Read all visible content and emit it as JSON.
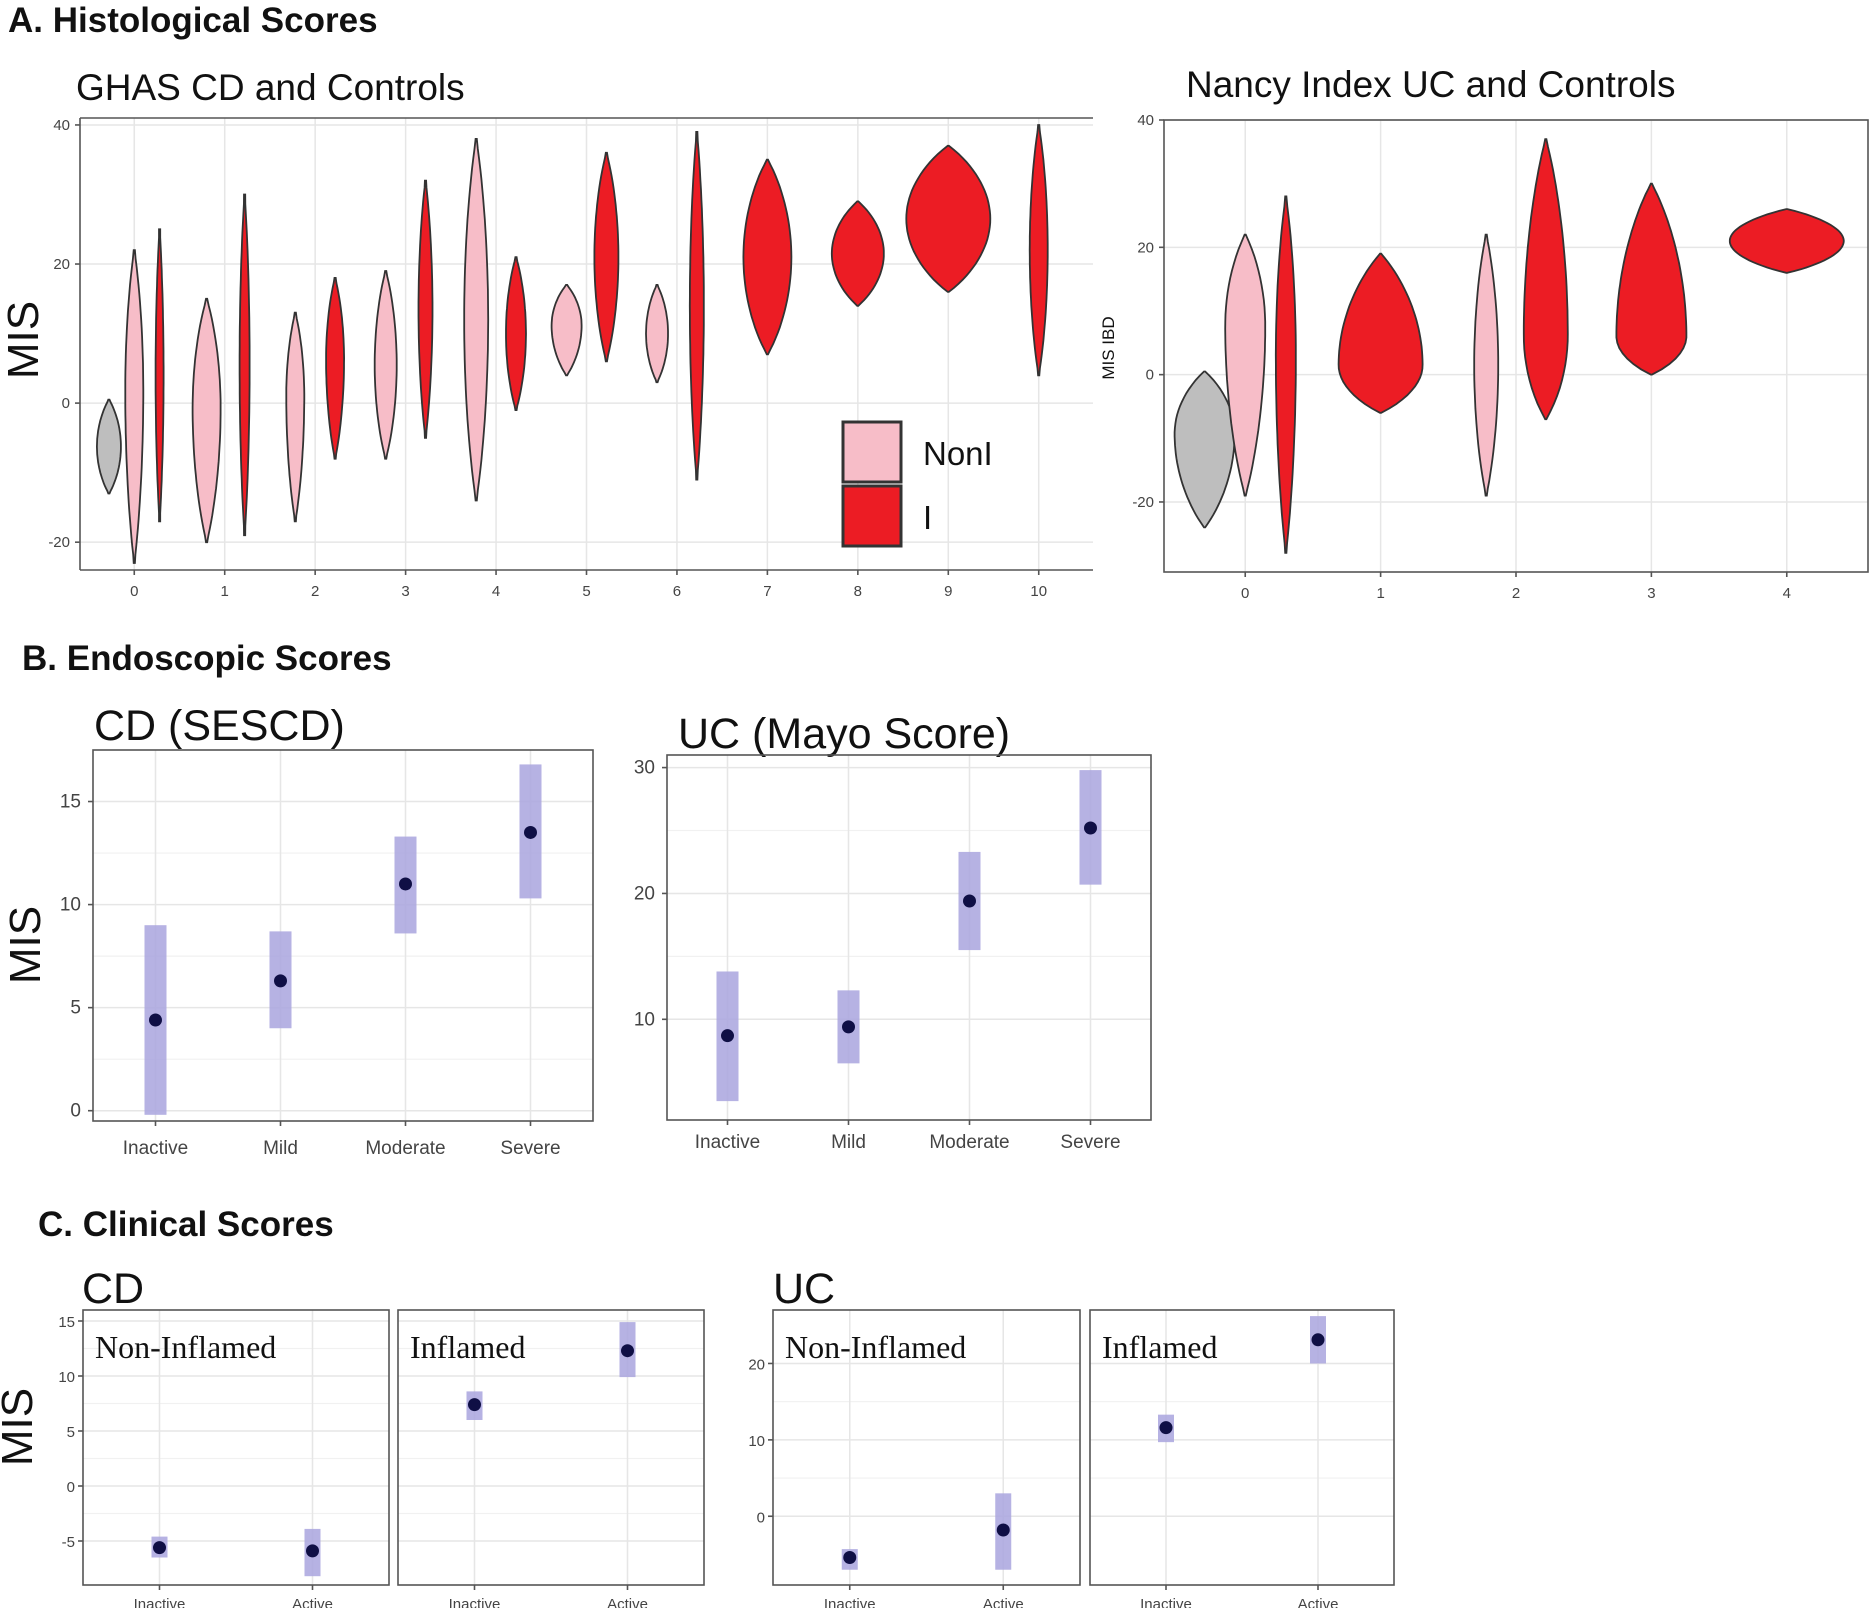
{
  "colors": {
    "control": "#bebebe",
    "noninflamed": "#f7bdc8",
    "inflamed": "#ec1c24",
    "dot": "#0f0f45",
    "band": "#a9a4de",
    "outline": "#333333"
  },
  "sections": {
    "a": "A. Histological Scores",
    "b": "B. Endoscopic Scores",
    "c": "C. Clinical Scores"
  },
  "chart_data": [
    {
      "id": "ghas",
      "type": "violin",
      "title": "GHAS CD and Controls",
      "ylabel": "MIS",
      "ylim": [
        -24,
        41
      ],
      "yticks": [
        -20,
        0,
        20,
        40
      ],
      "ytick_labels": [
        "-20",
        "0",
        "20",
        "40"
      ],
      "categories": [
        "0",
        "1",
        "2",
        "3",
        "4",
        "5",
        "6",
        "7",
        "8",
        "9",
        "10"
      ],
      "legend": {
        "position": "bottom-right",
        "items": [
          {
            "label": "NonI",
            "group": "noninflamed"
          },
          {
            "label": "I",
            "group": "inflamed"
          }
        ]
      },
      "violins": [
        {
          "category": "0",
          "group": "control",
          "offset": -0.28,
          "ymin": -13,
          "ymax": 0.5,
          "maxw": 12,
          "wide_at": 0.5
        },
        {
          "category": "0",
          "group": "noninflamed",
          "offset": 0,
          "ymin": -23,
          "ymax": 22,
          "maxw": 9,
          "wide_at": 0.55
        },
        {
          "category": "0",
          "group": "inflamed",
          "offset": 0.28,
          "ymin": -17,
          "ymax": 25,
          "maxw": 4,
          "wide_at": 0.5
        },
        {
          "category": "1",
          "group": "noninflamed",
          "offset": -0.2,
          "ymin": -20,
          "ymax": 15,
          "maxw": 14,
          "wide_at": 0.55
        },
        {
          "category": "1",
          "group": "inflamed",
          "offset": 0.22,
          "ymin": -19,
          "ymax": 30,
          "maxw": 5,
          "wide_at": 0.5
        },
        {
          "category": "2",
          "group": "noninflamed",
          "offset": -0.22,
          "ymin": -17,
          "ymax": 13,
          "maxw": 9,
          "wide_at": 0.6
        },
        {
          "category": "2",
          "group": "inflamed",
          "offset": 0.22,
          "ymin": -8,
          "ymax": 18,
          "maxw": 9,
          "wide_at": 0.55
        },
        {
          "category": "3",
          "group": "noninflamed",
          "offset": -0.22,
          "ymin": -8,
          "ymax": 19,
          "maxw": 11,
          "wide_at": 0.5
        },
        {
          "category": "3",
          "group": "inflamed",
          "offset": 0.22,
          "ymin": -5,
          "ymax": 32,
          "maxw": 7,
          "wide_at": 0.5
        },
        {
          "category": "4",
          "group": "noninflamed",
          "offset": -0.22,
          "ymin": -14,
          "ymax": 38,
          "maxw": 12,
          "wide_at": 0.5
        },
        {
          "category": "4",
          "group": "inflamed",
          "offset": 0.22,
          "ymin": -1,
          "ymax": 21,
          "maxw": 10,
          "wide_at": 0.5
        },
        {
          "category": "5",
          "group": "noninflamed",
          "offset": -0.22,
          "ymin": 4,
          "ymax": 17,
          "maxw": 15,
          "wide_at": 0.55
        },
        {
          "category": "5",
          "group": "inflamed",
          "offset": 0.22,
          "ymin": 6,
          "ymax": 36,
          "maxw": 12,
          "wide_at": 0.5
        },
        {
          "category": "6",
          "group": "noninflamed",
          "offset": -0.22,
          "ymin": 3,
          "ymax": 17,
          "maxw": 11,
          "wide_at": 0.5
        },
        {
          "category": "6",
          "group": "inflamed",
          "offset": 0.22,
          "ymin": -11,
          "ymax": 39,
          "maxw": 7,
          "wide_at": 0.5
        },
        {
          "category": "7",
          "group": "inflamed",
          "offset": 0,
          "ymin": 7,
          "ymax": 35,
          "maxw": 24,
          "wide_at": 0.5
        },
        {
          "category": "8",
          "group": "inflamed",
          "offset": 0,
          "ymin": 14,
          "ymax": 29,
          "maxw": 26,
          "wide_at": 0.5
        },
        {
          "category": "9",
          "group": "inflamed",
          "offset": 0,
          "ymin": 16,
          "ymax": 37,
          "maxw": 42,
          "wide_at": 0.5
        },
        {
          "category": "10",
          "group": "inflamed",
          "offset": 0,
          "ymin": 4,
          "ymax": 40,
          "maxw": 9,
          "wide_at": 0.5
        }
      ]
    },
    {
      "id": "nancy",
      "type": "violin",
      "title": "Nancy Index UC and Controls",
      "ylabel": "MIS IBD",
      "ylim": [
        -31,
        40
      ],
      "yticks": [
        -20,
        0,
        20,
        40
      ],
      "ytick_labels": [
        "-20",
        "0",
        "20",
        "40"
      ],
      "categories": [
        "0",
        "1",
        "2",
        "3",
        "4"
      ],
      "violins": [
        {
          "category": "0",
          "group": "control",
          "offset": -0.3,
          "ymin": -24,
          "ymax": 0.5,
          "maxw": 30,
          "wide_at": 0.6
        },
        {
          "category": "0",
          "group": "noninflamed",
          "offset": 0,
          "ymin": -19,
          "ymax": 22,
          "maxw": 20,
          "wide_at": 0.65
        },
        {
          "category": "0",
          "group": "inflamed",
          "offset": 0.3,
          "ymin": -28,
          "ymax": 28,
          "maxw": 10,
          "wide_at": 0.55
        },
        {
          "category": "1",
          "group": "inflamed",
          "offset": 0,
          "ymin": -6,
          "ymax": 19,
          "maxw": 42,
          "wide_at": 0.3
        },
        {
          "category": "2",
          "group": "noninflamed",
          "offset": -0.22,
          "ymin": -19,
          "ymax": 22,
          "maxw": 12,
          "wide_at": 0.5
        },
        {
          "category": "2",
          "group": "inflamed",
          "offset": 0.22,
          "ymin": -7,
          "ymax": 37,
          "maxw": 22,
          "wide_at": 0.3
        },
        {
          "category": "3",
          "group": "inflamed",
          "offset": 0,
          "ymin": 0,
          "ymax": 30,
          "maxw": 35,
          "wide_at": 0.2
        },
        {
          "category": "4",
          "group": "inflamed",
          "offset": 0,
          "ymin": 16,
          "ymax": 26,
          "maxw": 57,
          "wide_at": 0.5
        }
      ]
    },
    {
      "id": "sescd",
      "type": "pointrange",
      "title": "CD (SESCD)",
      "ylabel": "MIS",
      "ylim": [
        -0.5,
        17.5
      ],
      "yticks": [
        0,
        5,
        10,
        15
      ],
      "ytick_labels": [
        "0",
        "5",
        "10",
        "15"
      ],
      "categories": [
        "Inactive",
        "Mild",
        "Moderate",
        "Severe"
      ],
      "points": [
        {
          "category": "Inactive",
          "y": 4.4,
          "low": -0.2,
          "high": 9.0
        },
        {
          "category": "Mild",
          "y": 6.3,
          "low": 4.0,
          "high": 8.7
        },
        {
          "category": "Moderate",
          "y": 11.0,
          "low": 8.6,
          "high": 13.3
        },
        {
          "category": "Severe",
          "y": 13.5,
          "low": 10.3,
          "high": 16.8
        }
      ]
    },
    {
      "id": "mayo",
      "type": "pointrange",
      "title": "UC (Mayo Score)",
      "ylabel": "",
      "ylim": [
        2,
        31
      ],
      "yticks": [
        10,
        20,
        30
      ],
      "ytick_labels": [
        "10",
        "20",
        "30"
      ],
      "categories": [
        "Inactive",
        "Mild",
        "Moderate",
        "Severe"
      ],
      "points": [
        {
          "category": "Inactive",
          "y": 8.7,
          "low": 3.5,
          "high": 13.8
        },
        {
          "category": "Mild",
          "y": 9.4,
          "low": 6.5,
          "high": 12.3
        },
        {
          "category": "Moderate",
          "y": 19.4,
          "low": 15.5,
          "high": 23.3
        },
        {
          "category": "Severe",
          "y": 25.2,
          "low": 20.7,
          "high": 29.8
        }
      ]
    },
    {
      "id": "clin_cd",
      "type": "pointrange",
      "title": "CD",
      "ylabel": "MIS",
      "ylim": [
        -9,
        16
      ],
      "yticks": [
        -5,
        0,
        5,
        10,
        15
      ],
      "ytick_labels": [
        "-5",
        "0",
        "5",
        "10",
        "15"
      ],
      "categories": [
        "Inactive",
        "Active"
      ],
      "facets": [
        {
          "strip": "Non-Inflamed",
          "points": [
            {
              "category": "Inactive",
              "y": -5.6,
              "low": -6.5,
              "high": -4.6
            },
            {
              "category": "Active",
              "y": -5.9,
              "low": -8.2,
              "high": -3.9
            }
          ]
        },
        {
          "strip": "Inflamed",
          "points": [
            {
              "category": "Inactive",
              "y": 7.4,
              "low": 6.0,
              "high": 8.6
            },
            {
              "category": "Active",
              "y": 12.3,
              "low": 9.9,
              "high": 14.9
            }
          ]
        }
      ]
    },
    {
      "id": "clin_uc",
      "type": "pointrange",
      "title": "UC",
      "ylabel": "",
      "ylim": [
        -9,
        27
      ],
      "yticks": [
        0,
        10,
        20
      ],
      "ytick_labels": [
        "0",
        "10",
        "20"
      ],
      "categories": [
        "Inactive",
        "Active"
      ],
      "facets": [
        {
          "strip": "Non-Inflamed",
          "points": [
            {
              "category": "Inactive",
              "y": -5.4,
              "low": -7.0,
              "high": -4.3
            },
            {
              "category": "Active",
              "y": -1.8,
              "low": -7.0,
              "high": 3.0
            }
          ]
        },
        {
          "strip": "Inflamed",
          "points": [
            {
              "category": "Inactive",
              "y": 11.6,
              "low": 9.7,
              "high": 13.3
            },
            {
              "category": "Active",
              "y": 23.1,
              "low": 20.0,
              "high": 26.2
            }
          ]
        }
      ]
    }
  ]
}
